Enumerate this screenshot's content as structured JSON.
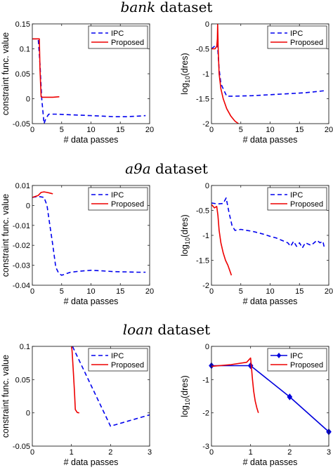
{
  "section_titles": [
    {
      "italic": "bank",
      "rest": " dataset"
    },
    {
      "italic": "a9a",
      "rest": " dataset"
    },
    {
      "italic": "loan",
      "rest": " dataset"
    }
  ],
  "colors": {
    "ipc": "#0000ee",
    "proposed": "#ee0000",
    "loan_ipc": "#0000dd"
  },
  "chart_data": [
    {
      "type": "line",
      "id": "bank-constraint",
      "xlabel": "# data passes",
      "ylabel": "constraint func. value",
      "xlim": [
        0,
        20
      ],
      "ylim": [
        -0.05,
        0.15
      ],
      "xticks": [
        0,
        5,
        10,
        15,
        20
      ],
      "xtick_labels": [
        "0",
        "5",
        "10",
        "15",
        "20"
      ],
      "yticks": [
        -0.05,
        0,
        0.05,
        0.1,
        0.15
      ],
      "ytick_labels": [
        "-0.05",
        "0",
        "0.05",
        "0.1",
        "0.15"
      ],
      "legend_position": "top-right",
      "series": [
        {
          "name": "IPC",
          "style": "dashed",
          "color": "#0000ee",
          "x": [
            0,
            1.0,
            1.3,
            1.6,
            2.0,
            2.3,
            2.8,
            4,
            6,
            8,
            10,
            12,
            14,
            16,
            18,
            19.3
          ],
          "y": [
            0.12,
            0.12,
            0.07,
            0.0,
            -0.05,
            -0.04,
            -0.031,
            -0.031,
            -0.032,
            -0.033,
            -0.034,
            -0.035,
            -0.036,
            -0.036,
            -0.035,
            -0.034
          ]
        },
        {
          "name": "Proposed",
          "style": "solid",
          "color": "#ee0000",
          "x": [
            0,
            1.2,
            1.3,
            1.5,
            1.7,
            2.5,
            3.5,
            4.6
          ],
          "y": [
            0.12,
            0.12,
            0.06,
            0.004,
            0.003,
            0.003,
            0.003,
            0.004
          ]
        }
      ]
    },
    {
      "type": "line",
      "id": "bank-dres",
      "xlabel": "# data passes",
      "ylabel": "log10(dres)",
      "xlim": [
        0,
        20
      ],
      "ylim": [
        -2,
        0
      ],
      "xticks": [
        0,
        5,
        10,
        15,
        20
      ],
      "xtick_labels": [
        "0",
        "5",
        "10",
        "15",
        "20"
      ],
      "yticks": [
        -2,
        -1.5,
        -1,
        -0.5,
        0
      ],
      "ytick_labels": [
        "-2",
        "-1.5",
        "-1",
        "-0.5",
        "0"
      ],
      "legend_position": "top-right",
      "series": [
        {
          "name": "IPC",
          "style": "dashed",
          "color": "#0000ee",
          "x": [
            0,
            0.5,
            1.0,
            1.3,
            1.6,
            2.0,
            2.6,
            4,
            7,
            10,
            13,
            16,
            19.3
          ],
          "y": [
            -0.5,
            -0.45,
            -0.4,
            -0.9,
            -1.2,
            -1.3,
            -1.45,
            -1.45,
            -1.44,
            -1.42,
            -1.4,
            -1.38,
            -1.34
          ]
        },
        {
          "name": "Proposed",
          "style": "solid",
          "color": "#ee0000",
          "x": [
            0,
            0.6,
            0.9,
            1.0,
            1.05,
            1.15,
            1.3,
            1.6,
            2.0,
            2.6,
            3.3,
            4.0,
            4.6
          ],
          "y": [
            -0.5,
            -0.5,
            -0.45,
            -0.3,
            0.0,
            -0.5,
            -1.0,
            -1.3,
            -1.5,
            -1.7,
            -1.85,
            -1.95,
            -2.0
          ]
        }
      ]
    },
    {
      "type": "line",
      "id": "a9a-constraint",
      "xlabel": "# data passes",
      "ylabel": "constraint func. value",
      "xlim": [
        0,
        20
      ],
      "ylim": [
        -0.04,
        0.01
      ],
      "xticks": [
        0,
        5,
        10,
        15,
        20
      ],
      "xtick_labels": [
        "0",
        "5",
        "10",
        "15",
        "20"
      ],
      "yticks": [
        -0.04,
        -0.03,
        -0.02,
        -0.01,
        0,
        0.01
      ],
      "ytick_labels": [
        "-0.04",
        "-0.03",
        "-0.02",
        "-0.01",
        "0",
        "0.01"
      ],
      "legend_position": "top-right",
      "series": [
        {
          "name": "IPC",
          "style": "dashed",
          "color": "#0000ee",
          "x": [
            0,
            1.0,
            2.0,
            2.5,
            3.0,
            3.5,
            4.0,
            4.5,
            5.0,
            5.5,
            6.5,
            8,
            10,
            12,
            14,
            16,
            18,
            19.3
          ],
          "y": [
            0.004,
            0.0045,
            0.004,
            0.0,
            -0.01,
            -0.02,
            -0.031,
            -0.034,
            -0.035,
            -0.0345,
            -0.0335,
            -0.033,
            -0.0325,
            -0.0328,
            -0.0332,
            -0.0333,
            -0.0335,
            -0.0335
          ]
        },
        {
          "name": "Proposed",
          "style": "solid",
          "color": "#ee0000",
          "x": [
            0,
            0.5,
            1.0,
            1.5,
            2.0,
            2.5,
            3.0,
            3.5
          ],
          "y": [
            0.004,
            0.0045,
            0.005,
            0.0065,
            0.0068,
            0.0065,
            0.0062,
            0.0058
          ]
        }
      ]
    },
    {
      "type": "line",
      "id": "a9a-dres",
      "xlabel": "# data passes",
      "ylabel": "log10(dres)",
      "xlim": [
        0,
        20
      ],
      "ylim": [
        -2,
        0
      ],
      "xticks": [
        0,
        5,
        10,
        15,
        20
      ],
      "xtick_labels": [
        "0",
        "5",
        "10",
        "15",
        "20"
      ],
      "yticks": [
        -2,
        -1.5,
        -1,
        -0.5,
        0
      ],
      "ytick_labels": [
        "-2",
        "-1.5",
        "-1",
        "-0.5",
        "0"
      ],
      "legend_position": "top-right",
      "series": [
        {
          "name": "IPC",
          "style": "dashed",
          "color": "#0000ee",
          "x": [
            0,
            1,
            2,
            2.5,
            3,
            3.5,
            4,
            5,
            6,
            7,
            8,
            9,
            10,
            11,
            12,
            13,
            13.5,
            14,
            14.5,
            15,
            15.5,
            16,
            17,
            18,
            18.5,
            19,
            19.3
          ],
          "y": [
            -0.35,
            -0.37,
            -0.36,
            -0.25,
            -0.55,
            -0.8,
            -0.9,
            -0.88,
            -0.9,
            -0.92,
            -0.95,
            -0.98,
            -1.02,
            -1.05,
            -1.1,
            -1.15,
            -1.22,
            -1.12,
            -1.22,
            -1.15,
            -1.25,
            -1.15,
            -1.2,
            -1.1,
            -1.15,
            -1.12,
            -1.28
          ]
        },
        {
          "name": "Proposed",
          "style": "solid",
          "color": "#ee0000",
          "x": [
            0,
            0.5,
            0.9,
            1.1,
            1.3,
            1.6,
            2.0,
            2.4,
            2.8,
            3.1,
            3.4
          ],
          "y": [
            -0.38,
            -0.45,
            -0.42,
            -0.6,
            -0.9,
            -1.15,
            -1.35,
            -1.5,
            -1.6,
            -1.7,
            -1.8
          ]
        }
      ]
    },
    {
      "type": "line",
      "id": "loan-constraint",
      "xlabel": "# data passes",
      "ylabel": "constraint func. value",
      "xlim": [
        0,
        3
      ],
      "ylim": [
        -0.05,
        0.1
      ],
      "xticks": [
        0,
        1,
        2,
        3
      ],
      "xtick_labels": [
        "0",
        "1",
        "2",
        "3"
      ],
      "yticks": [
        -0.05,
        0,
        0.05,
        0.1
      ],
      "ytick_labels": [
        "-0.05",
        "0",
        "0.05",
        "0.1"
      ],
      "legend_position": "top-right",
      "series": [
        {
          "name": "IPC",
          "style": "dashed",
          "color": "#0000ee",
          "x": [
            0,
            1.0,
            1.05,
            2.0,
            3.0
          ],
          "y": [
            0.104,
            0.104,
            0.097,
            -0.02,
            -0.003
          ]
        },
        {
          "name": "Proposed",
          "style": "solid",
          "color": "#ee0000",
          "x": [
            0,
            0.6,
            1.0,
            1.02,
            1.05,
            1.08,
            1.1,
            1.15,
            1.2
          ],
          "y": [
            0.104,
            0.104,
            0.104,
            0.09,
            0.06,
            0.03,
            0.005,
            0.0005,
            0.0
          ]
        }
      ]
    },
    {
      "type": "line",
      "id": "loan-dres",
      "xlabel": "# data passes",
      "ylabel": "log10(dres)",
      "xlim": [
        0,
        3
      ],
      "ylim": [
        -3,
        0
      ],
      "xticks": [
        0,
        1,
        2,
        3
      ],
      "xtick_labels": [
        "0",
        "1",
        "2",
        "3"
      ],
      "yticks": [
        -3,
        -2,
        -1,
        0
      ],
      "ytick_labels": [
        "-3",
        "-2",
        "-1",
        "0"
      ],
      "legend_position": "top-right",
      "series": [
        {
          "name": "IPC",
          "style": "solid-marker",
          "color": "#0000dd",
          "x": [
            0,
            1,
            2,
            3
          ],
          "y": [
            -0.58,
            -0.58,
            -1.52,
            -2.57
          ]
        },
        {
          "name": "Proposed",
          "style": "solid",
          "color": "#ee0000",
          "x": [
            0,
            0.5,
            0.9,
            1.0,
            1.02,
            1.05,
            1.08,
            1.12,
            1.16,
            1.2
          ],
          "y": [
            -0.6,
            -0.55,
            -0.48,
            -0.35,
            -0.6,
            -1.0,
            -1.35,
            -1.65,
            -1.85,
            -2.0
          ]
        }
      ]
    }
  ]
}
